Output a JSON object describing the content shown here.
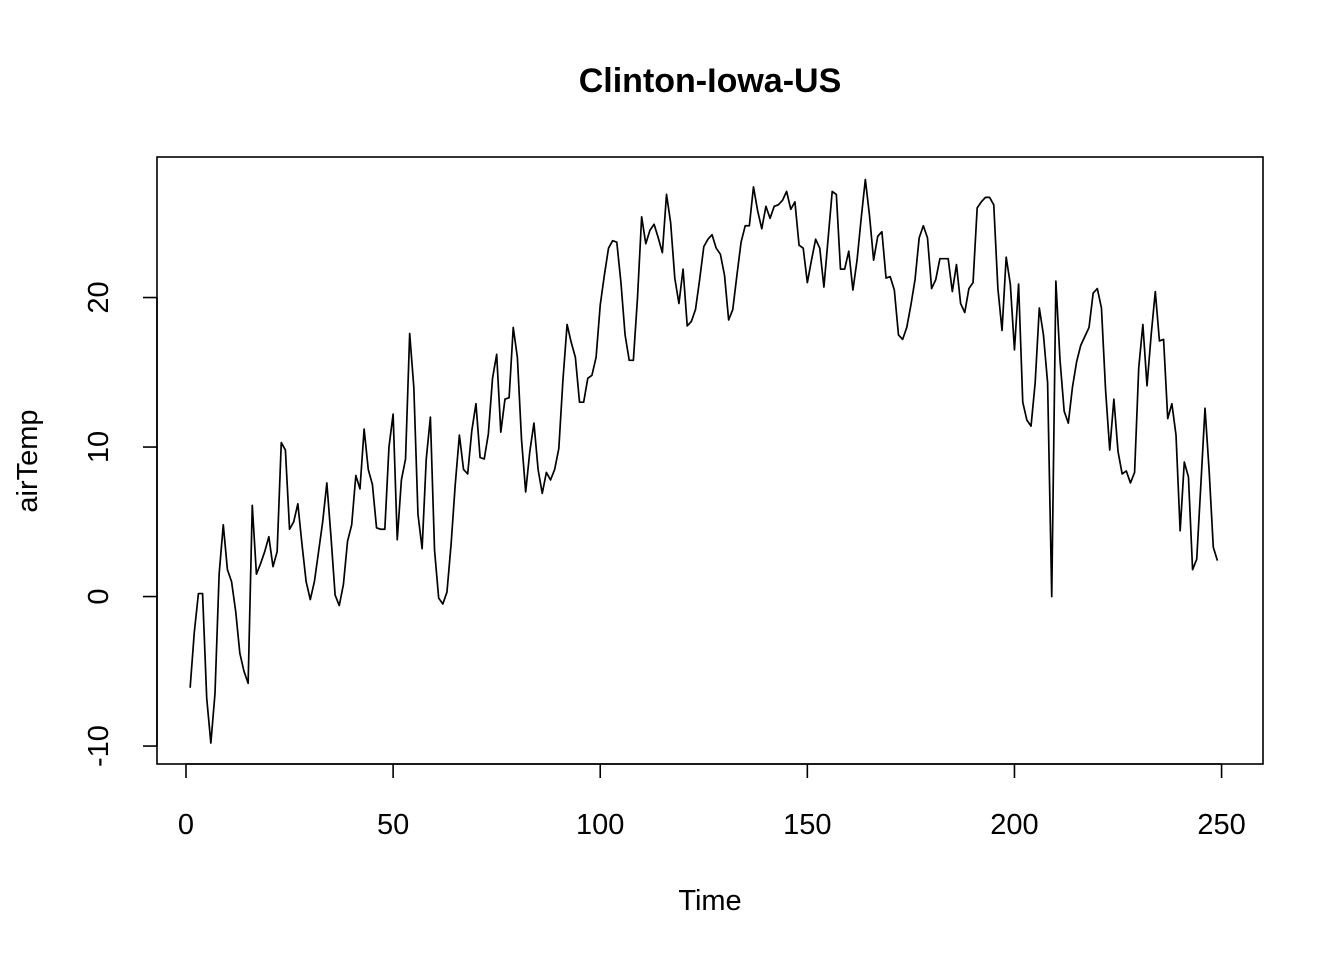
{
  "chart_data": {
    "type": "line",
    "title": "Clinton-Iowa-US",
    "xlabel": "Time",
    "ylabel": "airTemp",
    "xlim": [
      -7,
      260
    ],
    "ylim": [
      -11.2,
      29.4
    ],
    "x_ticks": [
      0,
      50,
      100,
      150,
      200,
      250
    ],
    "y_ticks": [
      -10,
      0,
      10,
      20
    ],
    "x_tick_labels": [
      "0",
      "50",
      "100",
      "150",
      "200",
      "250"
    ],
    "y_tick_labels": [
      "-10",
      "0",
      "10",
      "20"
    ],
    "grid": false,
    "legend": "none",
    "color": "#000000",
    "series": [
      {
        "x_start": 1,
        "values": [
          -6.1,
          -2.4,
          0.2,
          0.2,
          -6.8,
          -9.8,
          -6.5,
          1.5,
          4.8,
          1.8,
          1.0,
          -1.0,
          -3.8,
          -5.0,
          -5.8,
          6.1,
          1.5,
          2.2,
          3.0,
          4.0,
          2.0,
          3.0,
          10.3,
          9.8,
          4.5,
          5.0,
          6.2,
          3.5,
          1.0,
          -0.2,
          1.0,
          3.0,
          5.0,
          7.6,
          4.0,
          0.1,
          -0.6,
          0.8,
          3.7,
          4.8,
          8.1,
          7.2,
          11.2,
          8.5,
          7.5,
          4.6,
          4.5,
          4.5,
          10.0,
          12.2,
          3.8,
          7.8,
          9.2,
          17.6,
          14.0,
          5.5,
          3.2,
          9.2,
          12.0,
          3.1,
          -0.1,
          -0.5,
          0.3,
          3.5,
          7.5,
          10.8,
          8.5,
          8.2,
          11.1,
          12.9,
          9.3,
          9.2,
          10.9,
          14.6,
          16.2,
          11.0,
          13.2,
          13.3,
          18.0,
          16.0,
          10.5,
          7.0,
          9.7,
          11.6,
          8.5,
          6.9,
          8.3,
          7.8,
          8.5,
          9.9,
          14.5,
          18.2,
          17.0,
          16.0,
          13.0,
          13.0,
          14.6,
          14.8,
          16.0,
          19.5,
          21.5,
          23.3,
          23.8,
          23.7,
          21.0,
          17.5,
          15.8,
          15.8,
          20.0,
          25.4,
          23.6,
          24.5,
          24.9,
          24.0,
          23.0,
          26.9,
          25.0,
          21.3,
          19.6,
          21.9,
          18.1,
          18.4,
          19.2,
          21.2,
          23.4,
          23.9,
          24.2,
          23.3,
          22.9,
          21.5,
          18.5,
          19.2,
          21.5,
          23.7,
          24.8,
          24.8,
          27.4,
          25.8,
          24.6,
          26.1,
          25.3,
          26.1,
          26.2,
          26.5,
          27.1,
          25.9,
          26.4,
          23.5,
          23.3,
          21.0,
          22.5,
          23.9,
          23.3,
          20.7,
          23.9,
          27.1,
          26.9,
          21.9,
          21.9,
          23.1,
          20.5,
          22.5,
          25.3,
          27.9,
          25.5,
          22.5,
          24.1,
          24.4,
          21.3,
          21.4,
          20.5,
          17.5,
          17.2,
          18.0,
          19.5,
          21.2,
          24.0,
          24.8,
          24.0,
          20.6,
          21.2,
          22.6,
          22.6,
          22.6,
          20.4,
          22.2,
          19.6,
          19.0,
          20.6,
          21.0,
          26.0,
          26.4,
          26.7,
          26.7,
          26.2,
          20.6,
          17.8,
          22.7,
          20.9,
          16.5,
          20.9,
          13.0,
          11.8,
          11.4,
          14.3,
          19.3,
          17.5,
          14.3,
          0.0,
          21.1,
          15.8,
          12.4,
          11.6,
          14.0,
          15.7,
          16.8,
          17.4,
          18.0,
          20.3,
          20.6,
          19.3,
          13.8,
          9.8,
          13.2,
          9.7,
          8.2,
          8.4,
          7.6,
          8.3,
          15.3,
          18.2,
          14.1,
          17.5,
          20.4,
          17.1,
          17.2,
          11.9,
          12.9,
          10.8,
          4.4,
          9.0,
          8.0,
          1.8,
          2.5,
          7.5,
          12.6,
          8.4,
          3.3,
          2.4
        ]
      }
    ]
  }
}
